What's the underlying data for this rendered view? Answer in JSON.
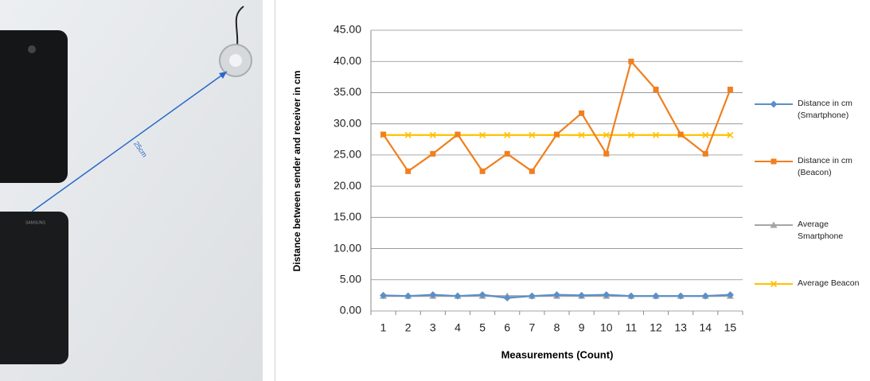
{
  "photo": {
    "label": "25cm"
  },
  "chart_data": {
    "type": "line",
    "x_label": "Measurements (Count)",
    "y_label": "Distance between sender and receiver in cm",
    "categories": [
      "1",
      "2",
      "3",
      "4",
      "5",
      "6",
      "7",
      "8",
      "9",
      "10",
      "11",
      "12",
      "13",
      "14",
      "15"
    ],
    "series": [
      {
        "name": "Distance in cm (Smartphone)",
        "color": "#5b8fc9",
        "marker": "diamond",
        "values": [
          2.5,
          2.4,
          2.6,
          2.4,
          2.6,
          2.1,
          2.4,
          2.6,
          2.5,
          2.6,
          2.4,
          2.4,
          2.4,
          2.4,
          2.6
        ]
      },
      {
        "name": "Distance in cm (Beacon)",
        "color": "#f07f1f",
        "marker": "square",
        "values": [
          28.3,
          22.4,
          25.2,
          28.3,
          22.4,
          25.2,
          22.4,
          28.3,
          31.7,
          25.2,
          40.0,
          35.5,
          28.3,
          25.2,
          35.5
        ]
      },
      {
        "name": "Average Smartphone",
        "color": "#a5a5a5",
        "marker": "triangle",
        "values": [
          2.4,
          2.4,
          2.4,
          2.4,
          2.4,
          2.4,
          2.4,
          2.4,
          2.4,
          2.4,
          2.4,
          2.4,
          2.4,
          2.4,
          2.4
        ]
      },
      {
        "name": "Average Beacon",
        "color": "#ffc000",
        "marker": "x",
        "values": [
          28.2,
          28.2,
          28.2,
          28.2,
          28.2,
          28.2,
          28.2,
          28.2,
          28.2,
          28.2,
          28.2,
          28.2,
          28.2,
          28.2,
          28.2
        ]
      }
    ],
    "ylim": [
      0,
      45
    ],
    "yticks": [
      {
        "value": 0,
        "label": "0.00"
      },
      {
        "value": 5,
        "label": "5.00"
      },
      {
        "value": 10,
        "label": "10.00"
      },
      {
        "value": 15,
        "label": "15.00"
      },
      {
        "value": 20,
        "label": "20.00"
      },
      {
        "value": 25,
        "label": "25.00"
      },
      {
        "value": 30,
        "label": "30.00"
      },
      {
        "value": 35,
        "label": "35.00"
      },
      {
        "value": 40,
        "label": "40.00"
      },
      {
        "value": 45,
        "label": "45.00"
      }
    ],
    "grid": true,
    "legend": "right"
  }
}
